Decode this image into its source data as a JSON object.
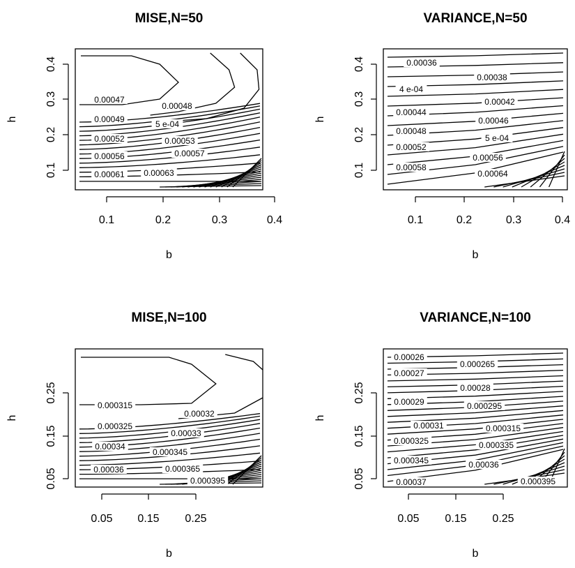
{
  "chart_data": [
    {
      "type": "contour",
      "title": "MISE,N=50",
      "xlabel": "b",
      "ylabel": "h",
      "xlim": [
        0.02,
        0.4
      ],
      "ylim": [
        0.05,
        0.43
      ],
      "xticks": [
        "0.1",
        "0.2",
        "0.3",
        "0.4"
      ],
      "yticks": [
        "0.1",
        "0.2",
        "0.3",
        "0.4"
      ],
      "contour_labels": [
        "0.00047",
        "0.00048",
        "0.00049",
        "5 e-04",
        "0.00052",
        "0.00053",
        "0.00056",
        "0.00057",
        "0.00061",
        "0.00063"
      ]
    },
    {
      "type": "contour",
      "title": "VARIANCE,N=50",
      "xlabel": "b",
      "ylabel": "h",
      "xlim": [
        0.02,
        0.4
      ],
      "ylim": [
        0.05,
        0.43
      ],
      "xticks": [
        "0.1",
        "0.2",
        "0.3",
        "0.4"
      ],
      "yticks": [
        "0.1",
        "0.2",
        "0.3",
        "0.4"
      ],
      "contour_labels": [
        "0.00036",
        "0.00038",
        "4 e-04",
        "0.00042",
        "0.00044",
        "0.00046",
        "0.00048",
        "5 e-04",
        "0.00052",
        "0.00056",
        "0.00058",
        "0.00064"
      ]
    },
    {
      "type": "contour",
      "title": "MISE,N=100",
      "xlabel": "b",
      "ylabel": "h",
      "xlim": [
        0.01,
        0.31
      ],
      "ylim": [
        0.02,
        0.33
      ],
      "xticks": [
        "0.05",
        "0.15",
        "0.25"
      ],
      "yticks": [
        "0.05",
        "0.15",
        "0.25"
      ],
      "contour_labels": [
        "0.000315",
        "0.00032",
        "0.000325",
        "0.00033",
        "0.00034",
        "0.000345",
        "0.00036",
        "0.000365",
        "0.000395"
      ]
    },
    {
      "type": "contour",
      "title": "VARIANCE,N=100",
      "xlabel": "b",
      "ylabel": "h",
      "xlim": [
        0.01,
        0.31
      ],
      "ylim": [
        0.02,
        0.33
      ],
      "xticks": [
        "0.05",
        "0.15",
        "0.25"
      ],
      "yticks": [
        "0.05",
        "0.15",
        "0.25"
      ],
      "contour_labels": [
        "0.00026",
        "0.000265",
        "0.00027",
        "0.00028",
        "0.00029",
        "0.000295",
        "0.00031",
        "0.000315",
        "0.000325",
        "0.000335",
        "0.000345",
        "0.00036",
        "0.00037",
        "0.000395"
      ]
    }
  ]
}
